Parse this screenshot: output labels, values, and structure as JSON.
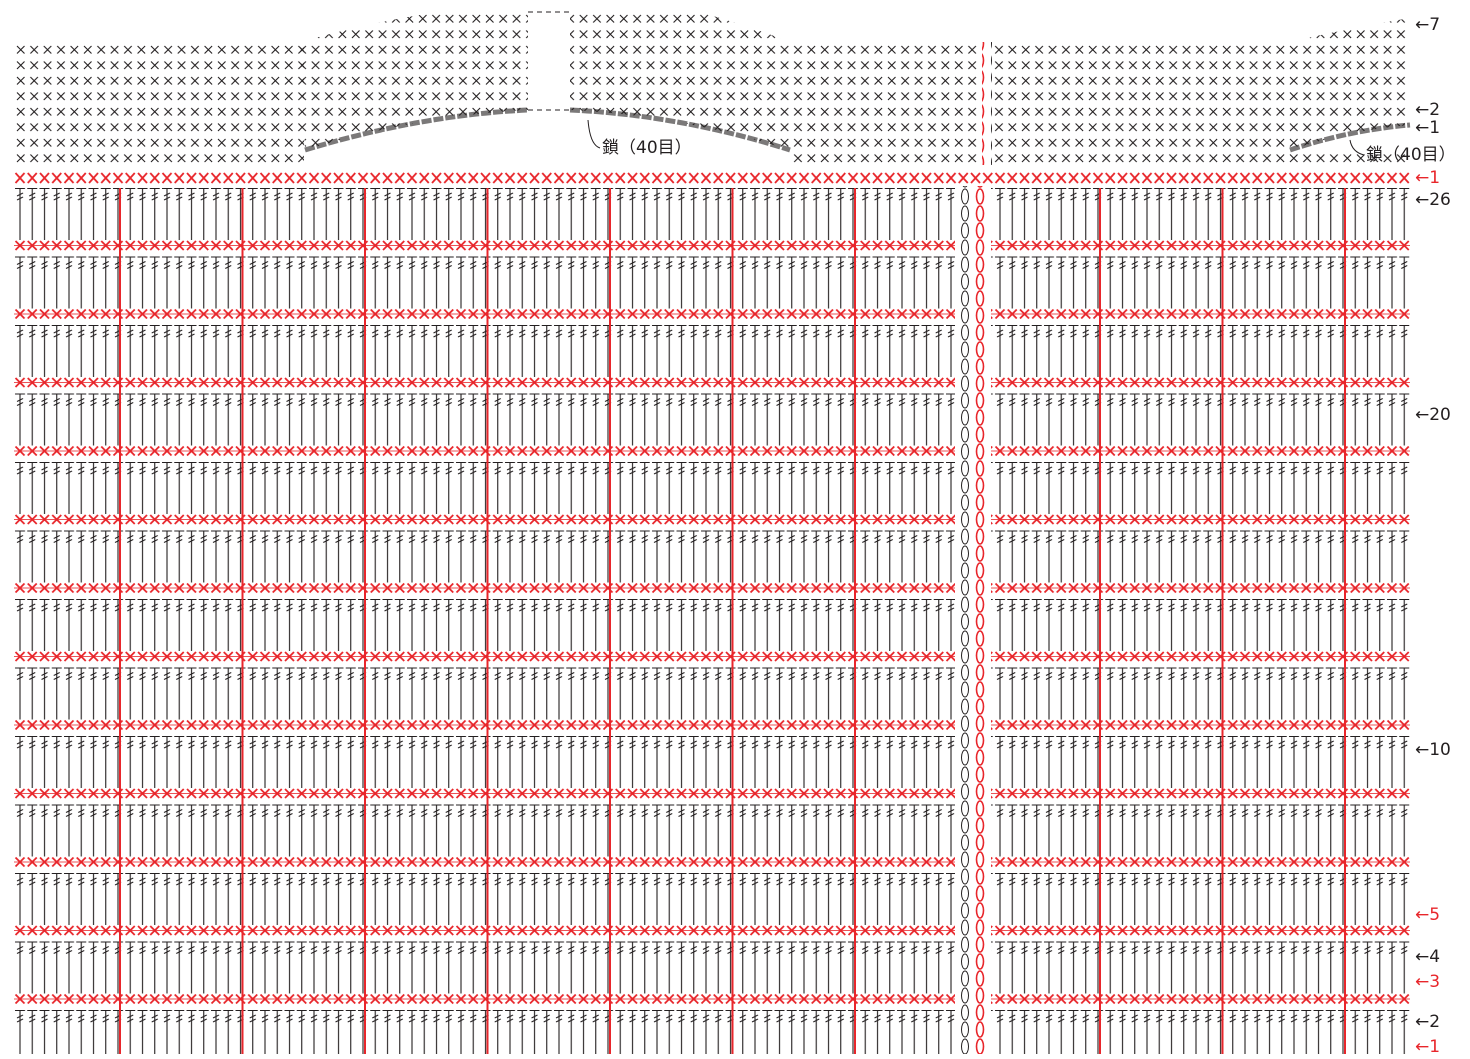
{
  "chart_labels": {
    "row_labels": [
      "←7",
      "←2",
      "←1",
      "←1",
      "←26",
      "←20",
      "←10",
      "←5",
      "←4",
      "←3",
      "←2",
      "←1"
    ],
    "chain_labels": [
      "鎖（40目）",
      "鎖（40目）"
    ]
  }
}
